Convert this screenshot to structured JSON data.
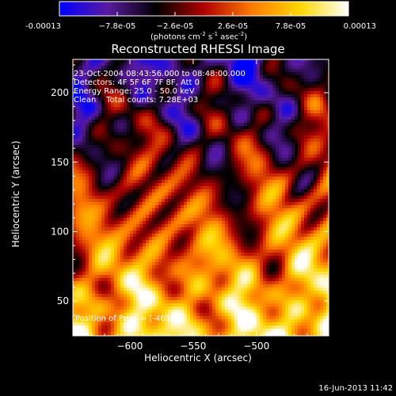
{
  "chart_data": {
    "type": "heatmap",
    "title": "Reconstructed RHESSI Image",
    "xlabel": "Heliocentric X (arcsec)",
    "ylabel": "Heliocentric Y (arcsec)",
    "xlim": [
      -645,
      -443
    ],
    "ylim": [
      25,
      224
    ],
    "xticks": [
      -600,
      -550,
      -500
    ],
    "yticks": [
      50,
      100,
      150,
      200
    ],
    "colorbar": {
      "min": -0.00013,
      "max": 0.00013,
      "ticks": [
        -0.00013,
        -7.8e-05,
        -2.6e-05,
        2.6e-05,
        7.8e-05,
        0.00013
      ],
      "tick_labels": [
        "-0.00013",
        "−7.8e-05",
        "−2.6e-05",
        "2.6e-05",
        "7.8e-05",
        "0.00013"
      ],
      "colormap": [
        "#0000ff",
        "#5a1aa0",
        "#000000",
        "#b00000",
        "#ff7a00",
        "#ffd800",
        "#ffffff"
      ]
    },
    "annotations": [
      "23-Oct-2004 08:43:56.000 to 08:48:00.000",
      "Detectors: 4F 5F 6F 7F 8F, Att 0",
      "Energy Range: 25.0 - 50.0 keV",
      "Clean    Total counts: 7.28E+03"
    ],
    "peak_text": "Position of Peak = [-469,83]"
  },
  "colorbar_unit": {
    "base": "(photons cm",
    "e1": "-2",
    "mid1": " s",
    "e2": "-1",
    "mid2": " asec",
    "e3": "-2",
    "end": ")"
  },
  "footer_date": "16-Jun-2013 11:42"
}
